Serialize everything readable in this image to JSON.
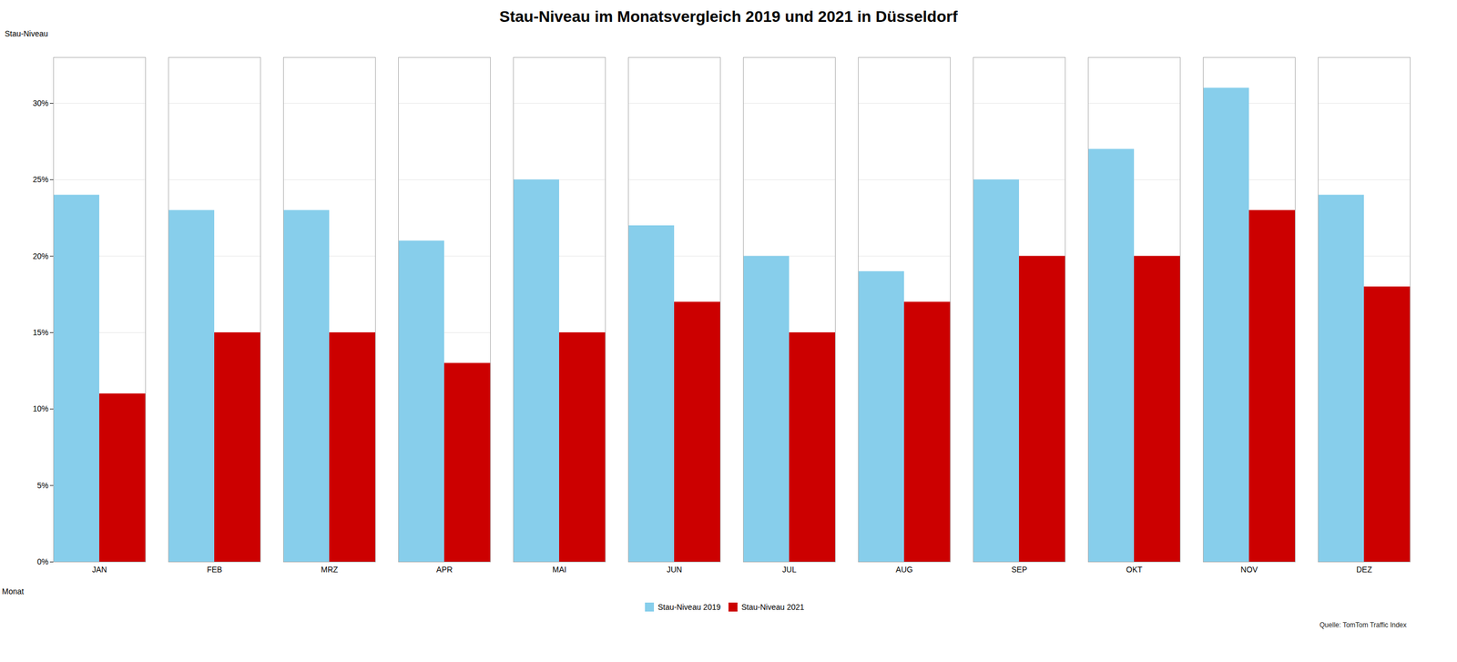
{
  "chart_data": {
    "type": "bar",
    "title": "Stau-Niveau im Monatsvergleich 2019 und 2021 in Düsseldorf",
    "x_label": "Monat",
    "y_label": "Stau-Niveau",
    "caption": "Quelle: TomTom Traffic Index",
    "categories": [
      "JAN",
      "FEB",
      "MRZ",
      "APR",
      "MAI",
      "JUN",
      "JUL",
      "AUG",
      "SEP",
      "OKT",
      "NOV",
      "DEZ"
    ],
    "series": [
      {
        "name": "Stau-Niveau 2019",
        "color": "#87CEEB",
        "values": [
          24,
          23,
          23,
          21,
          25,
          22,
          20,
          19,
          25,
          27,
          31,
          24
        ]
      },
      {
        "name": "Stau-Niveau 2021",
        "color": "#CC0000",
        "values": [
          11,
          15,
          15,
          13,
          15,
          17,
          15,
          17,
          20,
          20,
          23,
          18
        ]
      }
    ],
    "ylim": [
      0,
      33
    ],
    "yticks": [
      {
        "value": 0,
        "label": "0%"
      },
      {
        "value": 5,
        "label": "5%"
      },
      {
        "value": 10,
        "label": "10%"
      },
      {
        "value": 15,
        "label": "15%"
      },
      {
        "value": 20,
        "label": "20%"
      },
      {
        "value": 25,
        "label": "25%"
      },
      {
        "value": 30,
        "label": "30%"
      }
    ],
    "grid": true,
    "legend": "bottom"
  }
}
